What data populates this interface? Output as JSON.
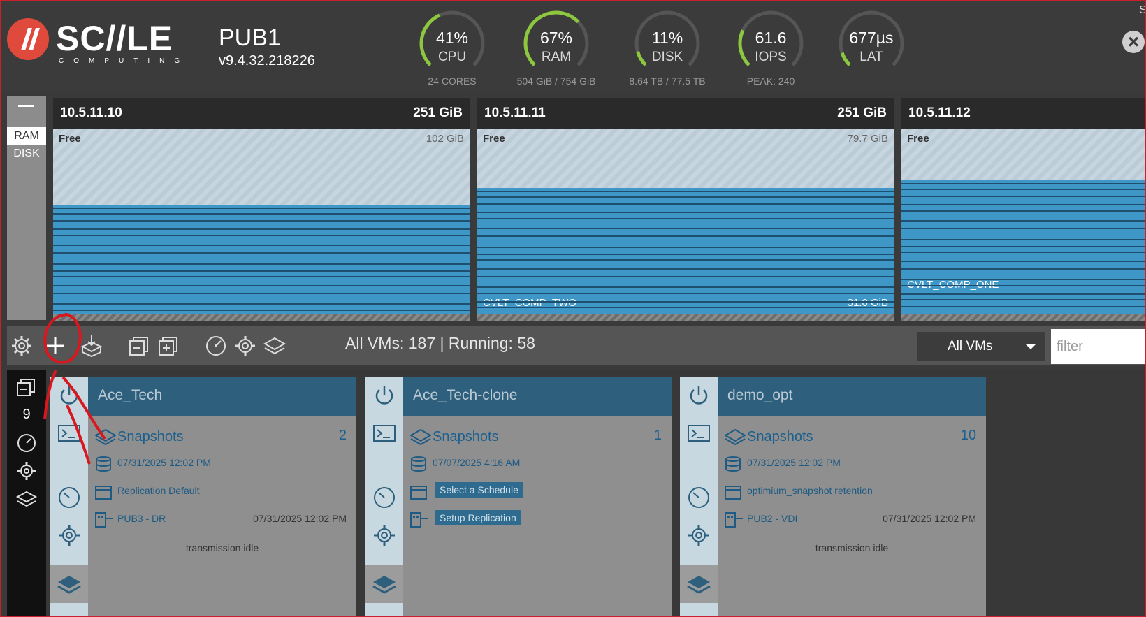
{
  "brand": {
    "name": "SC//LE",
    "sub": "COMPUTING",
    "accent": "#e04a3c"
  },
  "cluster": {
    "name": "PUB1",
    "version": "v9.4.32.218226"
  },
  "gauges": [
    {
      "value": "41%",
      "label": "CPU",
      "sub": "24 CORES",
      "fraction": 0.41
    },
    {
      "value": "67%",
      "label": "RAM",
      "sub": "504 GiB / 754 GiB",
      "fraction": 0.67
    },
    {
      "value": "11%",
      "label": "DISK",
      "sub": "8.64 TB / 77.5 TB",
      "fraction": 0.11
    },
    {
      "value": "61.6",
      "label": "IOPS",
      "sub": "PEAK: 240",
      "fraction": 0.26
    },
    {
      "value": "677µs",
      "label": "LAT",
      "sub": "",
      "fraction": 0.1
    }
  ],
  "corner_text": "S",
  "memory_toggle": {
    "ram": "RAM",
    "disk": "DISK",
    "active": "RAM"
  },
  "nodes": [
    {
      "ip": "10.5.11.10",
      "total": "251 GiB",
      "free_label": "Free",
      "free_size": "102 GiB",
      "free_fraction": 0.41,
      "vm_label": "",
      "vm_size": ""
    },
    {
      "ip": "10.5.11.11",
      "total": "251 GiB",
      "free_label": "Free",
      "free_size": "79.7 GiB",
      "free_fraction": 0.32,
      "vm_label": "CVLT_COMP_TWO",
      "vm_size": "31.0 GiB"
    },
    {
      "ip": "10.5.11.12",
      "total": "",
      "free_label": "Free",
      "free_size": "",
      "free_fraction": 0.28,
      "vm_label": "CVLT_COMP_ONE",
      "vm_size": ""
    }
  ],
  "toolbar": {
    "vm_summary": "All VMs: 187 | Running: 58",
    "view_select": "All VMs",
    "filter_placeholder": "filter"
  },
  "rail": {
    "count": "9"
  },
  "vms": [
    {
      "name": "Ace_Tech",
      "snapshots_label": "Snapshots",
      "snapshots_count": "2",
      "last_snapshot": "07/31/2025 12:02 PM",
      "schedule": "Replication Default",
      "schedule_is_button": false,
      "replication": "PUB3 - DR",
      "replication_time": "07/31/2025 12:02 PM",
      "replication_is_button": false,
      "status": "transmission idle"
    },
    {
      "name": "Ace_Tech-clone",
      "snapshots_label": "Snapshots",
      "snapshots_count": "1",
      "last_snapshot": "07/07/2025 4:16 AM",
      "schedule": "Select a Schedule",
      "schedule_is_button": true,
      "replication": "Setup Replication",
      "replication_time": "",
      "replication_is_button": true,
      "status": ""
    },
    {
      "name": "demo_opt",
      "snapshots_label": "Snapshots",
      "snapshots_count": "10",
      "last_snapshot": "07/31/2025 12:02 PM",
      "schedule": "optimium_snapshot retention",
      "schedule_is_button": false,
      "replication": "PUB2 - VDI",
      "replication_time": "07/31/2025 12:02 PM",
      "replication_is_button": false,
      "status": "transmission idle"
    }
  ],
  "colors": {
    "used": "#3f97c8",
    "header_bg": "#2e5f7c",
    "gauge_arc": "#8dc63f",
    "annotation": "#d8181e"
  }
}
